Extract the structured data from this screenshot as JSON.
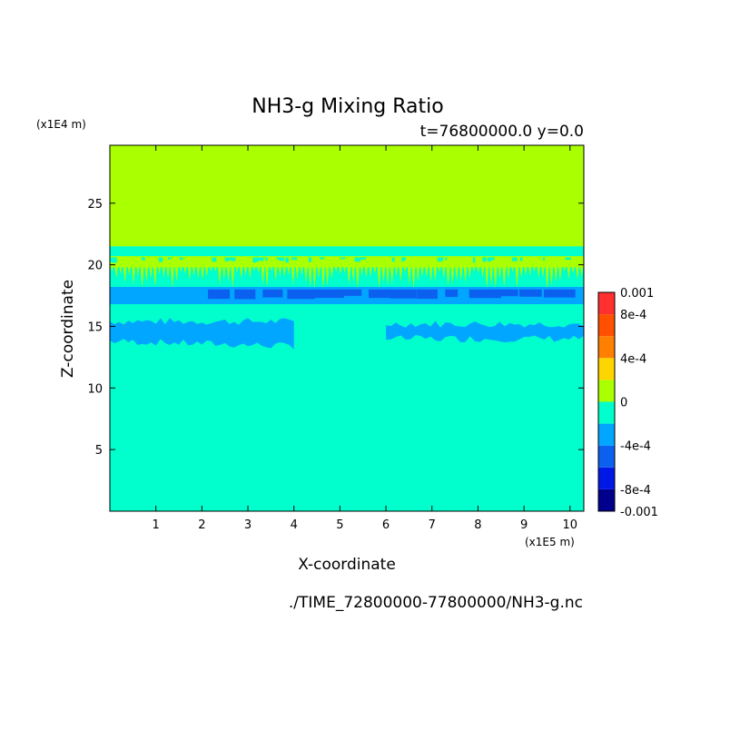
{
  "chart_data": {
    "type": "heatmap",
    "title": "NH3-g Mixing Ratio",
    "subtitle": "t=76800000.0 y=0.0",
    "xlabel": "X-coordinate",
    "ylabel": "Z-coordinate",
    "x_scale_label": "(x1E5 m)",
    "y_scale_label": "(x1E4 m)",
    "x_ticks": [
      "1",
      "2",
      "3",
      "4",
      "5",
      "6",
      "7",
      "8",
      "9",
      "10"
    ],
    "y_ticks": [
      "5",
      "10",
      "15",
      "20",
      "25"
    ],
    "xlim": [
      0,
      10.3
    ],
    "ylim": [
      0,
      29.7
    ],
    "footer": "./TIME_72800000-77800000/NH3-g.nc",
    "colorbar": {
      "colors": [
        "#00008c",
        "#0018e6",
        "#0c60f0",
        "#00a6ff",
        "#00ffcc",
        "#aaff00",
        "#ffd500",
        "#ff8000",
        "#ff5000",
        "#ff3030"
      ],
      "labels": [
        "0.001",
        "8e-4",
        "4e-4",
        "0",
        "-4e-4",
        "-8e-4",
        "-0.001"
      ],
      "label_values": [
        0.001,
        0.0008,
        0.0004,
        0,
        -0.0004,
        -0.0008,
        -0.001
      ],
      "vmin": -0.001,
      "vmax": 0.001
    },
    "background_color": "#00ffcc",
    "bands": [
      {
        "level": "0",
        "color": "#aaff00",
        "z": [
          21.5,
          29.7
        ]
      },
      {
        "level": "0",
        "color": "#aaff00",
        "z": [
          19.8,
          20.7
        ]
      },
      {
        "level": "-4e-4",
        "color": "#00a6ff",
        "z": [
          16.8,
          18.2
        ]
      },
      {
        "level": "-4e-4",
        "color": "#00a6ff",
        "z": [
          13.8,
          15.4
        ],
        "x": [
          0,
          4.0
        ]
      },
      {
        "level": "-4e-4",
        "color": "#00a6ff",
        "z": [
          14.0,
          15.2
        ],
        "x": [
          6.0,
          10.3
        ]
      },
      {
        "level": "-8e-4",
        "color": "#0c60f0",
        "z": [
          17.5,
          18.0
        ],
        "x": [
          2.0,
          10.0
        ]
      }
    ]
  }
}
